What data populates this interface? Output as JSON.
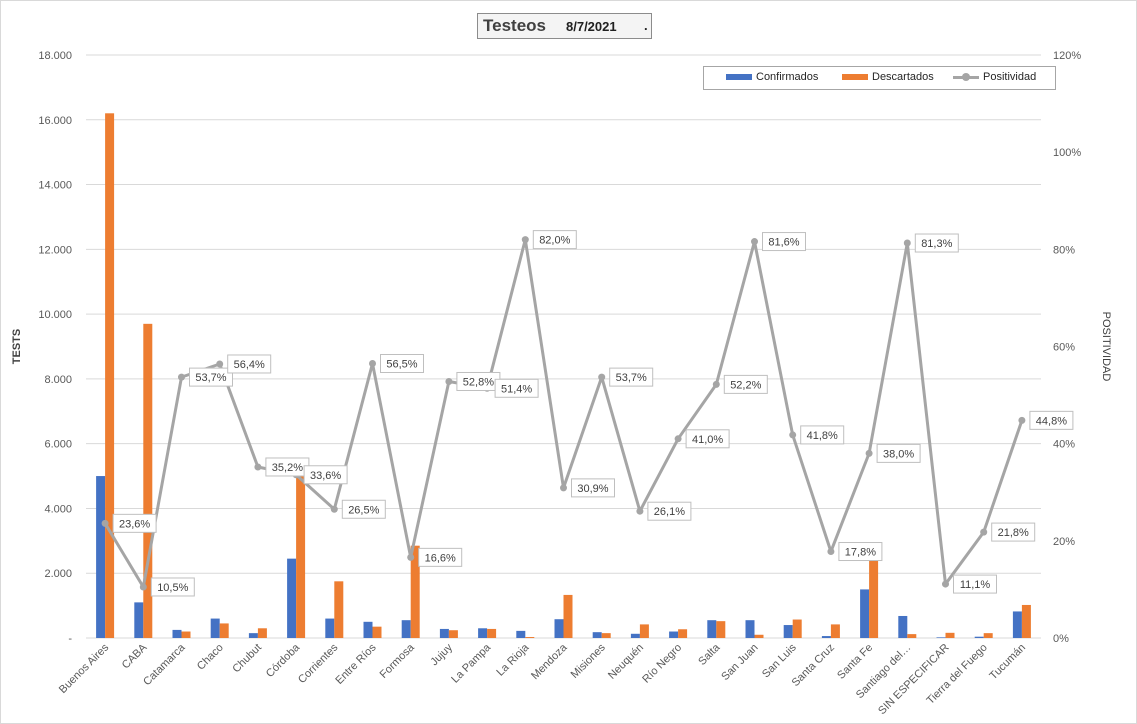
{
  "chart_data": {
    "type": "bar",
    "title": "Testeos",
    "title_date": "8/7/2021",
    "title_suffix": ".",
    "ylabel": "TESTS",
    "y2label": "POSITIVIDAD",
    "ylim": [
      0,
      18000
    ],
    "y2lim": [
      0,
      120
    ],
    "yticks": [
      "-",
      "2.000",
      "4.000",
      "6.000",
      "8.000",
      "10.000",
      "12.000",
      "14.000",
      "16.000",
      "18.000"
    ],
    "y2ticks": [
      "0%",
      "20%",
      "40%",
      "60%",
      "80%",
      "100%",
      "120%"
    ],
    "grid": true,
    "legend_position": "top-right",
    "categories": [
      "Buenos Aires",
      "CABA",
      "Catamarca",
      "Chaco",
      "Chubut",
      "Córdoba",
      "Corrientes",
      "Entre Ríos",
      "Formosa",
      "Jujuy",
      "La Pampa",
      "La Rioja",
      "Mendoza",
      "Misiones",
      "Neuquén",
      "Río Negro",
      "Salta",
      "San Juan",
      "San Luis",
      "Santa Cruz",
      "Santa Fe",
      "Santiago del…",
      "SIN ESPECIFICAR",
      "Tierra del Fuego",
      "Tucumán"
    ],
    "series": [
      {
        "name": "Confirmados",
        "type": "bar",
        "axis": "left",
        "color": "#4472c4",
        "values": [
          5000,
          1100,
          250,
          600,
          150,
          2450,
          600,
          500,
          550,
          280,
          300,
          220,
          580,
          180,
          130,
          200,
          550,
          550,
          400,
          60,
          1500,
          680,
          20,
          40,
          820
        ]
      },
      {
        "name": "Descartados",
        "type": "bar",
        "axis": "left",
        "color": "#ed7d31",
        "values": [
          16200,
          9700,
          200,
          450,
          300,
          5000,
          1750,
          350,
          2850,
          240,
          280,
          30,
          1330,
          150,
          420,
          270,
          520,
          100,
          570,
          420,
          2400,
          120,
          160,
          150,
          1020
        ]
      },
      {
        "name": "Positividad",
        "type": "line",
        "axis": "right",
        "color": "#a5a5a5",
        "values": [
          23.6,
          10.5,
          53.7,
          56.4,
          35.2,
          33.6,
          26.5,
          56.5,
          16.6,
          52.8,
          51.4,
          82.0,
          30.9,
          53.7,
          26.1,
          41.0,
          52.2,
          81.6,
          41.8,
          17.8,
          38.0,
          81.3,
          11.1,
          21.8,
          44.8
        ],
        "labels": [
          "23,6%",
          "10,5%",
          "53,7%",
          "56,4%",
          "35,2%",
          "33,6%",
          "26,5%",
          "56,5%",
          "16,6%",
          "52,8%",
          "51,4%",
          "82,0%",
          "30,9%",
          "53,7%",
          "26,1%",
          "41,0%",
          "52,2%",
          "81,6%",
          "41,8%",
          "17,8%",
          "38,0%",
          "81,3%",
          "11,1%",
          "21,8%",
          "44,8%"
        ]
      }
    ]
  }
}
